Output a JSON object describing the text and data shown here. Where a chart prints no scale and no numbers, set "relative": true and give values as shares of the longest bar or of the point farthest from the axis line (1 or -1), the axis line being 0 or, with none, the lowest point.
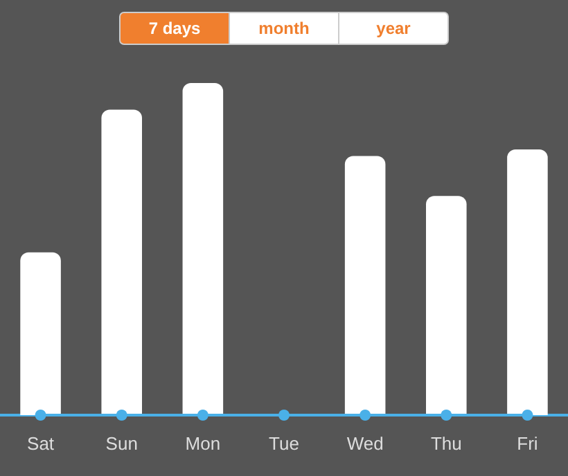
{
  "chart_data": {
    "type": "bar",
    "relative": true,
    "annotations": [
      "7 days",
      "month",
      "year"
    ],
    "categories": [
      "Sat",
      "Sun",
      "Mon",
      "Tue",
      "Wed",
      "Thu",
      "Fri"
    ],
    "series": [
      {
        "color": "#ffffff",
        "values": [
          0.49,
          0.92,
          1,
          0,
          0.78,
          0.66,
          0.8
        ]
      },
      {
        "type": "line",
        "color": "#4ab0e8",
        "values": [
          0,
          0,
          0,
          0,
          0,
          0,
          0
        ]
      }
    ],
    "marker": "circle"
  }
}
